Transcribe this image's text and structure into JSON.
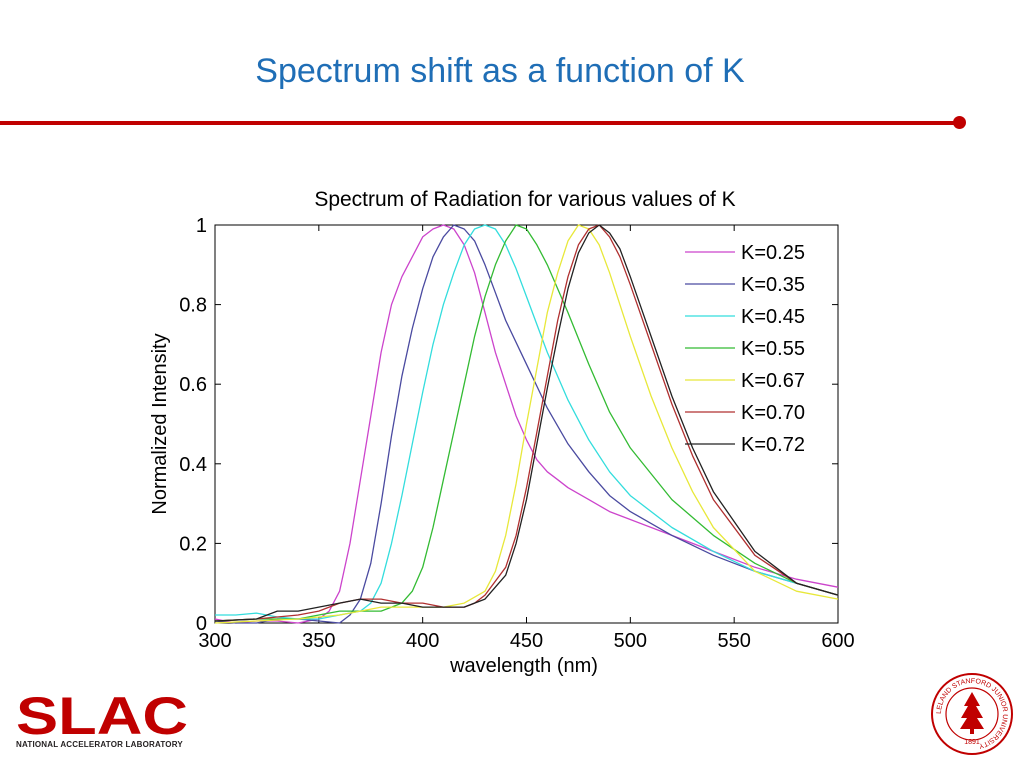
{
  "slide": {
    "title": "Spectrum shift as a function of K",
    "accent_color": "#c00000",
    "title_color": "#1f6eb6"
  },
  "logo": {
    "text": "SLAC",
    "subtitle": "NATIONAL ACCELERATOR LABORATORY",
    "color": "#c00000"
  },
  "seal": {
    "ring_text": "LELAND STANFORD JUNIOR UNIVERSITY",
    "year": "1891",
    "color": "#c00000"
  },
  "chart_data": {
    "type": "line",
    "title": "Spectrum of Radiation for various values of K",
    "xlabel": "wavelength (nm)",
    "ylabel": "Normalized Intensity",
    "xlim": [
      300,
      600
    ],
    "ylim": [
      0,
      1
    ],
    "xticks": [
      300,
      350,
      400,
      450,
      500,
      550,
      600
    ],
    "yticks": [
      0,
      0.2,
      0.4,
      0.6,
      0.8,
      1
    ],
    "ytick_labels": [
      "0",
      "0.2",
      "0.4",
      "0.6",
      "0.8",
      "1"
    ],
    "grid": false,
    "legend_position": "top-right",
    "series": [
      {
        "name": "K=0.25",
        "color": "#cc44cc",
        "x": [
          300,
          310,
          320,
          330,
          340,
          350,
          355,
          360,
          365,
          370,
          375,
          380,
          385,
          390,
          395,
          400,
          405,
          410,
          415,
          420,
          425,
          430,
          435,
          440,
          445,
          450,
          455,
          460,
          465,
          470,
          480,
          490,
          500,
          520,
          540,
          560,
          580,
          600
        ],
        "y": [
          0.01,
          0.0,
          0.005,
          0.005,
          0.0,
          0.01,
          0.03,
          0.08,
          0.2,
          0.36,
          0.52,
          0.68,
          0.8,
          0.87,
          0.92,
          0.97,
          0.99,
          1.0,
          0.99,
          0.95,
          0.88,
          0.78,
          0.68,
          0.6,
          0.52,
          0.46,
          0.41,
          0.38,
          0.36,
          0.34,
          0.31,
          0.28,
          0.26,
          0.22,
          0.18,
          0.14,
          0.11,
          0.09
        ]
      },
      {
        "name": "K=0.35",
        "color": "#4a4aa0",
        "x": [
          300,
          310,
          320,
          330,
          340,
          350,
          360,
          365,
          370,
          375,
          380,
          385,
          390,
          395,
          400,
          405,
          410,
          415,
          420,
          425,
          430,
          435,
          440,
          450,
          460,
          470,
          480,
          490,
          500,
          520,
          540,
          560,
          580,
          600
        ],
        "y": [
          0.005,
          0.0,
          0.0,
          0.01,
          0.01,
          0.005,
          0.0,
          0.02,
          0.06,
          0.15,
          0.3,
          0.47,
          0.62,
          0.74,
          0.84,
          0.92,
          0.97,
          1.0,
          0.99,
          0.96,
          0.9,
          0.83,
          0.76,
          0.65,
          0.54,
          0.45,
          0.38,
          0.32,
          0.28,
          0.22,
          0.17,
          0.13,
          0.1,
          0.07
        ]
      },
      {
        "name": "K=0.45",
        "color": "#33dddd",
        "x": [
          300,
          310,
          320,
          330,
          340,
          350,
          360,
          370,
          375,
          380,
          385,
          390,
          395,
          400,
          405,
          410,
          415,
          420,
          425,
          430,
          435,
          440,
          445,
          450,
          460,
          470,
          480,
          490,
          500,
          520,
          540,
          560,
          580,
          600
        ],
        "y": [
          0.02,
          0.02,
          0.025,
          0.015,
          0.01,
          0.01,
          0.02,
          0.03,
          0.05,
          0.1,
          0.2,
          0.32,
          0.45,
          0.58,
          0.7,
          0.8,
          0.88,
          0.95,
          0.99,
          1.0,
          0.99,
          0.95,
          0.89,
          0.82,
          0.68,
          0.56,
          0.46,
          0.38,
          0.32,
          0.24,
          0.18,
          0.13,
          0.1,
          0.07
        ]
      },
      {
        "name": "K=0.55",
        "color": "#33bb33",
        "x": [
          300,
          320,
          340,
          350,
          360,
          370,
          380,
          390,
          395,
          400,
          405,
          410,
          415,
          420,
          425,
          430,
          435,
          440,
          445,
          450,
          455,
          460,
          470,
          480,
          490,
          500,
          520,
          540,
          560,
          580,
          600
        ],
        "y": [
          0.005,
          0.01,
          0.01,
          0.02,
          0.03,
          0.03,
          0.03,
          0.05,
          0.08,
          0.14,
          0.24,
          0.36,
          0.48,
          0.6,
          0.72,
          0.82,
          0.9,
          0.96,
          1.0,
          0.99,
          0.95,
          0.9,
          0.78,
          0.65,
          0.53,
          0.44,
          0.31,
          0.22,
          0.15,
          0.1,
          0.07
        ]
      },
      {
        "name": "K=0.67",
        "color": "#e8e83a",
        "x": [
          300,
          320,
          340,
          360,
          370,
          380,
          390,
          400,
          410,
          420,
          430,
          435,
          440,
          445,
          450,
          455,
          460,
          465,
          470,
          475,
          480,
          485,
          490,
          495,
          500,
          510,
          520,
          530,
          540,
          560,
          580,
          600
        ],
        "y": [
          0.0,
          0.005,
          0.01,
          0.02,
          0.03,
          0.04,
          0.04,
          0.04,
          0.04,
          0.05,
          0.08,
          0.13,
          0.22,
          0.35,
          0.5,
          0.64,
          0.78,
          0.88,
          0.96,
          1.0,
          0.99,
          0.95,
          0.88,
          0.8,
          0.72,
          0.57,
          0.44,
          0.33,
          0.24,
          0.13,
          0.08,
          0.06
        ]
      },
      {
        "name": "K=0.70",
        "color": "#b03030",
        "x": [
          300,
          320,
          340,
          350,
          360,
          370,
          380,
          390,
          400,
          410,
          415,
          420,
          425,
          430,
          440,
          445,
          450,
          455,
          460,
          465,
          470,
          475,
          480,
          485,
          490,
          495,
          500,
          510,
          520,
          530,
          540,
          560,
          580,
          600
        ],
        "y": [
          0.005,
          0.01,
          0.02,
          0.03,
          0.05,
          0.06,
          0.06,
          0.05,
          0.05,
          0.04,
          0.04,
          0.04,
          0.05,
          0.07,
          0.14,
          0.22,
          0.34,
          0.48,
          0.62,
          0.76,
          0.87,
          0.95,
          0.99,
          1.0,
          0.97,
          0.92,
          0.85,
          0.7,
          0.55,
          0.42,
          0.31,
          0.17,
          0.1,
          0.07
        ]
      },
      {
        "name": "K=0.72",
        "color": "#222222",
        "x": [
          300,
          320,
          330,
          340,
          350,
          360,
          370,
          380,
          390,
          400,
          410,
          415,
          420,
          425,
          430,
          440,
          445,
          450,
          455,
          460,
          465,
          470,
          475,
          480,
          485,
          490,
          495,
          500,
          510,
          520,
          530,
          540,
          560,
          580,
          600
        ],
        "y": [
          0.005,
          0.01,
          0.03,
          0.03,
          0.04,
          0.05,
          0.06,
          0.05,
          0.05,
          0.04,
          0.04,
          0.04,
          0.04,
          0.05,
          0.06,
          0.12,
          0.2,
          0.31,
          0.45,
          0.59,
          0.72,
          0.84,
          0.93,
          0.98,
          1.0,
          0.98,
          0.94,
          0.87,
          0.72,
          0.57,
          0.44,
          0.33,
          0.18,
          0.1,
          0.07
        ]
      }
    ]
  }
}
